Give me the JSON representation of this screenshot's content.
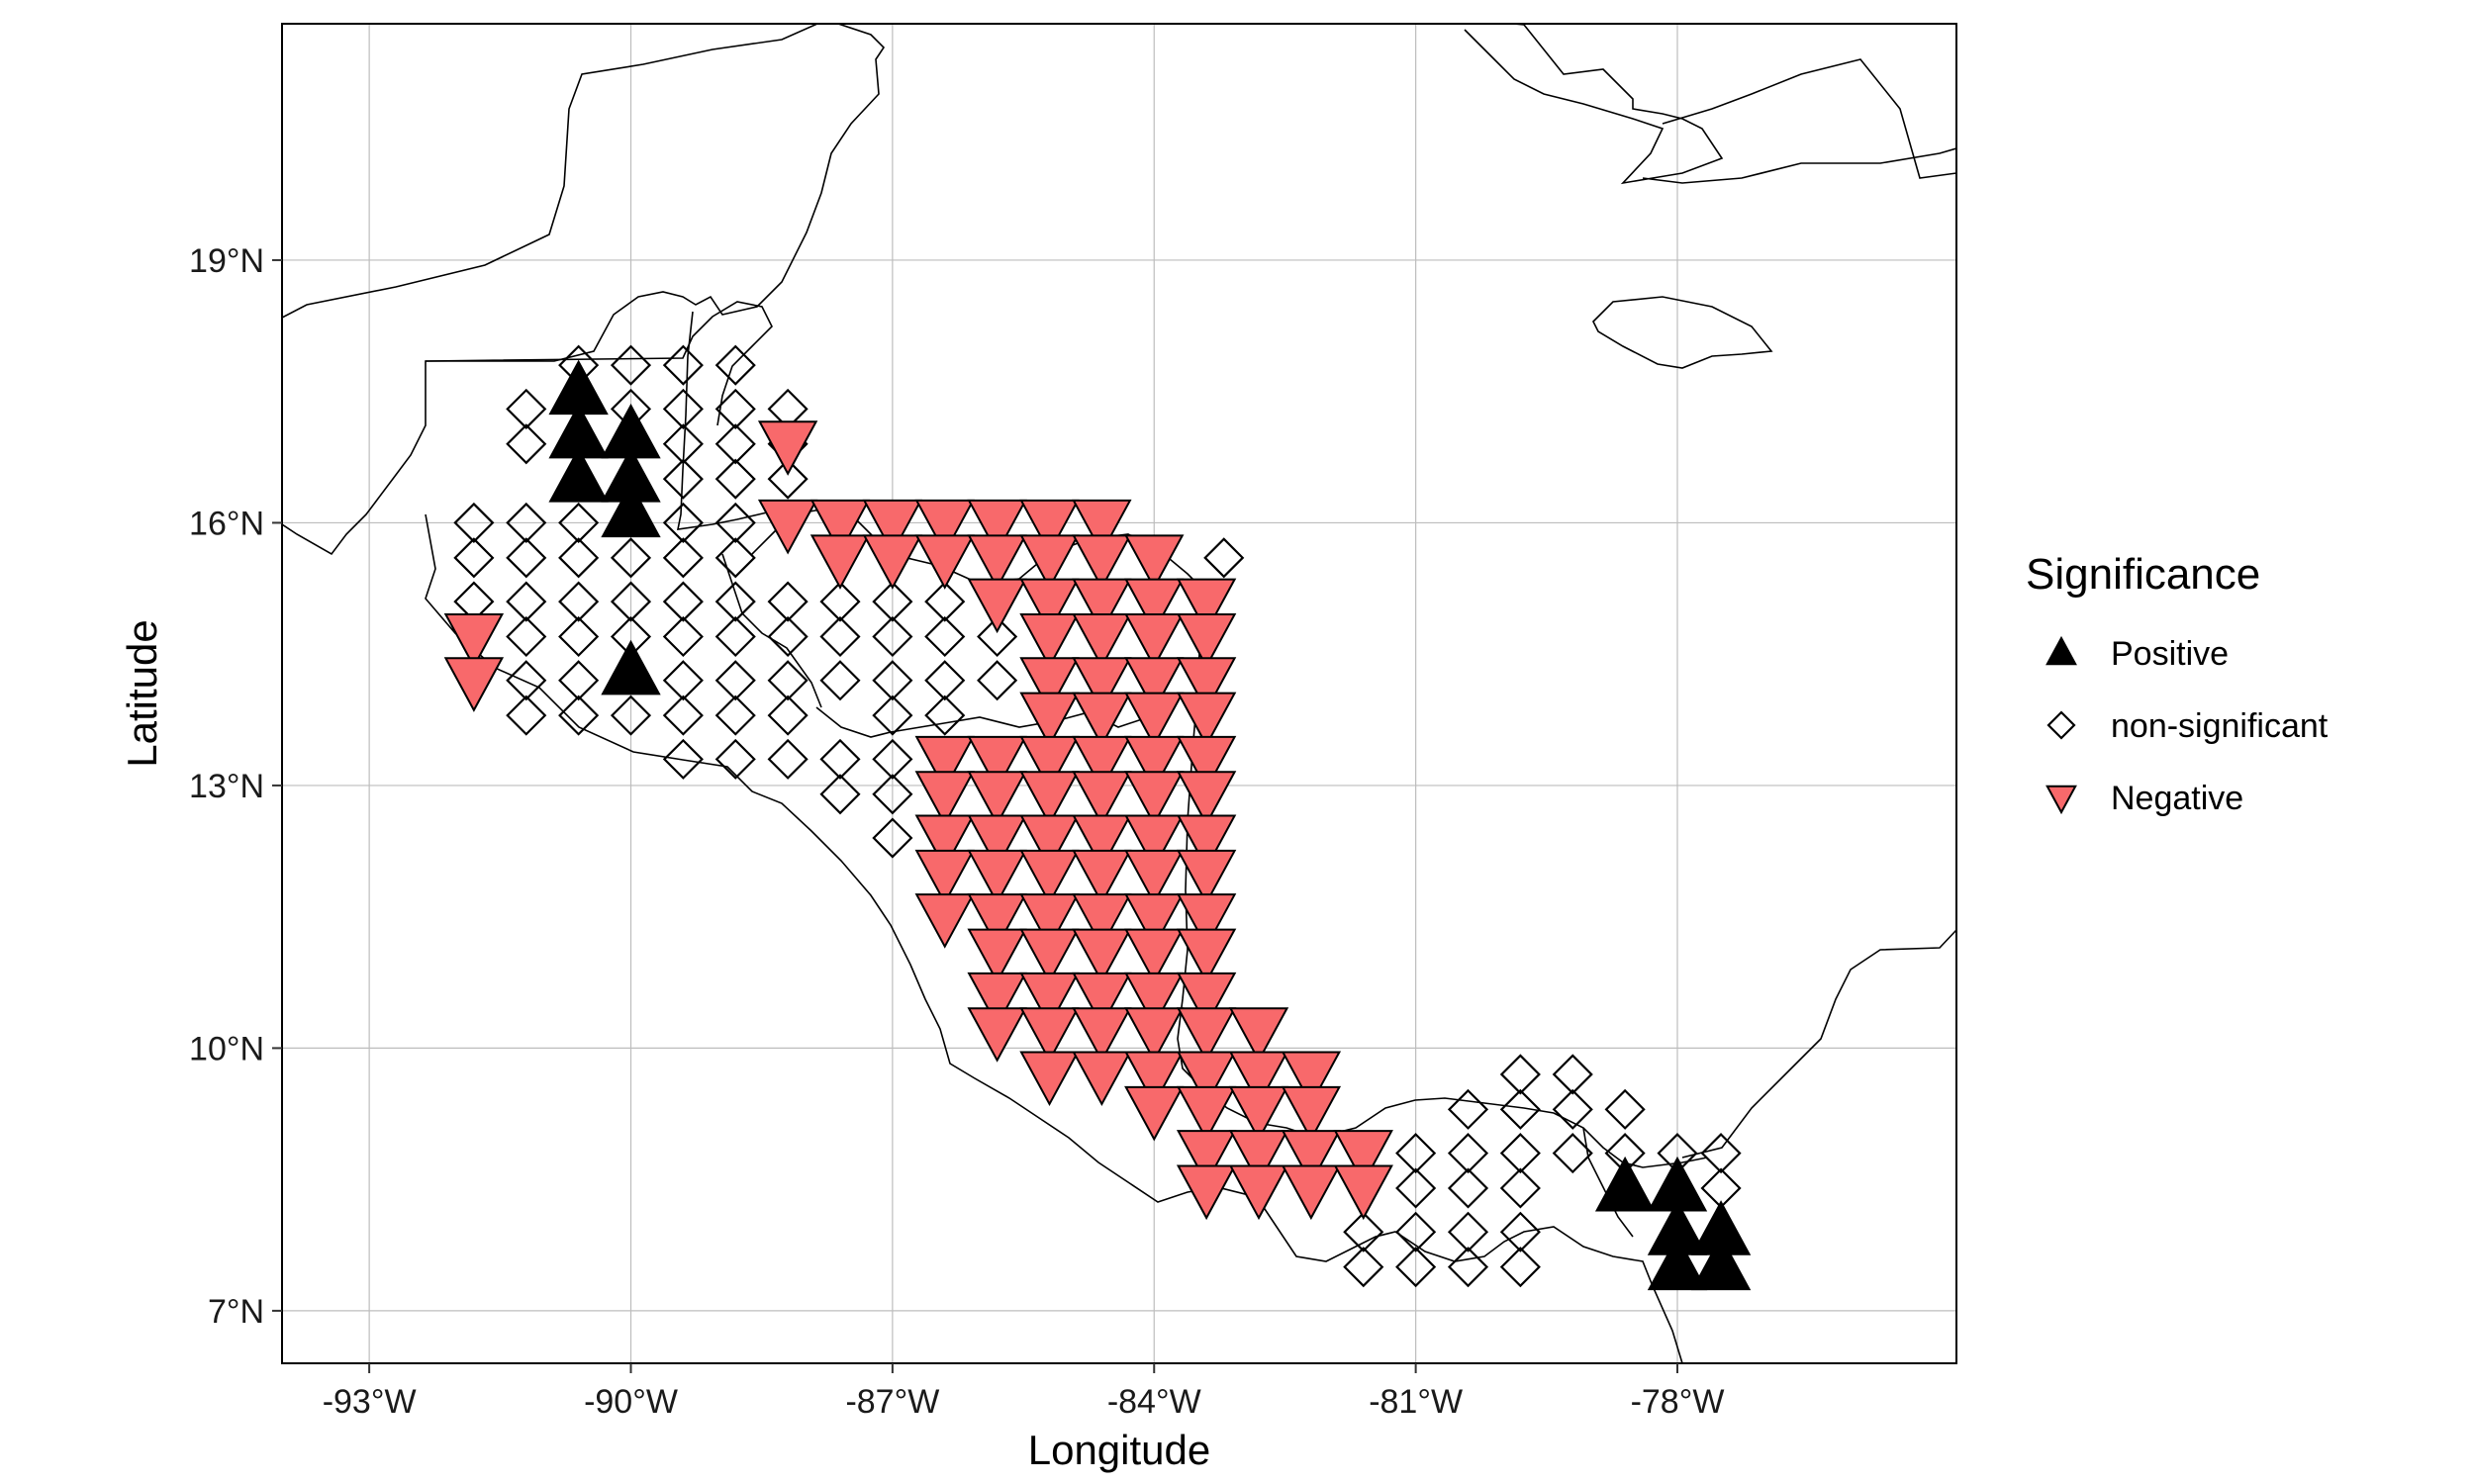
{
  "chart_data": {
    "type": "scatter",
    "title": "",
    "xlabel": "Longitude",
    "ylabel": "Latitude",
    "xlim": [
      -94,
      -74.8
    ],
    "ylim": [
      6.4,
      21.7
    ],
    "grid": true,
    "x_ticks": [
      -93,
      -90,
      -87,
      -84,
      -81,
      -78
    ],
    "x_tick_labels": [
      "-93°W",
      "-90°W",
      "-87°W",
      "-84°W",
      "-81°W",
      "-78°W"
    ],
    "y_ticks": [
      7,
      10,
      13,
      16,
      19
    ],
    "y_tick_labels": [
      "7°N",
      "10°N",
      "13°N",
      "16°N",
      "19°N"
    ],
    "legend": {
      "title": "Significance",
      "placement": "right",
      "entries": [
        {
          "label": "Positive",
          "shape": "triangle-up",
          "color": "#000000"
        },
        {
          "label": "non-significant",
          "shape": "diamond-open",
          "color": "#000000"
        },
        {
          "label": "Negative",
          "shape": "triangle-down",
          "color": "#F8696B"
        }
      ]
    },
    "series": [
      {
        "name": "Positive",
        "points": [
          [
            -90.6,
            17.5
          ],
          [
            -90.6,
            17.0
          ],
          [
            -90.6,
            16.5
          ],
          [
            -90.0,
            17.0
          ],
          [
            -90.0,
            16.5
          ],
          [
            -90.0,
            16.1
          ],
          [
            -90.0,
            14.3
          ],
          [
            -78.6,
            8.4
          ],
          [
            -78.0,
            8.4
          ],
          [
            -78.0,
            7.9
          ],
          [
            -78.0,
            7.5
          ],
          [
            -77.5,
            7.9
          ],
          [
            -77.5,
            7.5
          ]
        ]
      },
      {
        "name": "non-significant",
        "points": [
          [
            -90.6,
            17.8
          ],
          [
            -90.0,
            17.8
          ],
          [
            -89.4,
            17.8
          ],
          [
            -88.8,
            17.8
          ],
          [
            -91.2,
            17.3
          ],
          [
            -90.0,
            17.3
          ],
          [
            -89.4,
            17.3
          ],
          [
            -88.8,
            17.3
          ],
          [
            -88.2,
            17.3
          ],
          [
            -91.2,
            16.9
          ],
          [
            -89.4,
            16.9
          ],
          [
            -88.8,
            16.9
          ],
          [
            -88.2,
            16.9
          ],
          [
            -89.4,
            16.5
          ],
          [
            -88.8,
            16.5
          ],
          [
            -88.2,
            16.5
          ],
          [
            -91.8,
            16.0
          ],
          [
            -91.2,
            16.0
          ],
          [
            -90.6,
            16.0
          ],
          [
            -89.4,
            16.0
          ],
          [
            -88.8,
            16.0
          ],
          [
            -91.8,
            15.6
          ],
          [
            -91.2,
            15.6
          ],
          [
            -90.6,
            15.6
          ],
          [
            -90.0,
            15.6
          ],
          [
            -89.4,
            15.6
          ],
          [
            -88.8,
            15.6
          ],
          [
            -83.2,
            15.6
          ],
          [
            -91.8,
            15.1
          ],
          [
            -91.2,
            15.1
          ],
          [
            -90.6,
            15.1
          ],
          [
            -90.0,
            15.1
          ],
          [
            -89.4,
            15.1
          ],
          [
            -88.8,
            15.1
          ],
          [
            -88.2,
            15.1
          ],
          [
            -87.6,
            15.1
          ],
          [
            -87.0,
            15.1
          ],
          [
            -86.4,
            15.1
          ],
          [
            -91.2,
            14.7
          ],
          [
            -90.6,
            14.7
          ],
          [
            -90.0,
            14.7
          ],
          [
            -89.4,
            14.7
          ],
          [
            -88.8,
            14.7
          ],
          [
            -88.2,
            14.7
          ],
          [
            -87.6,
            14.7
          ],
          [
            -87.0,
            14.7
          ],
          [
            -86.4,
            14.7
          ],
          [
            -85.8,
            14.7
          ],
          [
            -91.2,
            14.2
          ],
          [
            -90.6,
            14.2
          ],
          [
            -89.4,
            14.2
          ],
          [
            -88.8,
            14.2
          ],
          [
            -88.2,
            14.2
          ],
          [
            -87.6,
            14.2
          ],
          [
            -87.0,
            14.2
          ],
          [
            -86.4,
            14.2
          ],
          [
            -85.8,
            14.2
          ],
          [
            -91.2,
            13.8
          ],
          [
            -90.6,
            13.8
          ],
          [
            -90.0,
            13.8
          ],
          [
            -89.4,
            13.8
          ],
          [
            -88.8,
            13.8
          ],
          [
            -88.2,
            13.8
          ],
          [
            -87.0,
            13.8
          ],
          [
            -86.4,
            13.8
          ],
          [
            -89.4,
            13.3
          ],
          [
            -88.8,
            13.3
          ],
          [
            -88.2,
            13.3
          ],
          [
            -87.6,
            13.3
          ],
          [
            -87.0,
            13.3
          ],
          [
            -87.6,
            12.9
          ],
          [
            -87.0,
            12.9
          ],
          [
            -87.0,
            12.4
          ],
          [
            -79.8,
            9.7
          ],
          [
            -79.2,
            9.7
          ],
          [
            -80.4,
            9.3
          ],
          [
            -79.8,
            9.3
          ],
          [
            -79.2,
            9.3
          ],
          [
            -78.6,
            9.3
          ],
          [
            -81.0,
            8.8
          ],
          [
            -80.4,
            8.8
          ],
          [
            -79.8,
            8.8
          ],
          [
            -79.2,
            8.8
          ],
          [
            -78.6,
            8.8
          ],
          [
            -78.0,
            8.8
          ],
          [
            -77.5,
            8.8
          ],
          [
            -81.0,
            8.4
          ],
          [
            -80.4,
            8.4
          ],
          [
            -79.8,
            8.4
          ],
          [
            -77.5,
            8.4
          ],
          [
            -81.6,
            7.9
          ],
          [
            -81.0,
            7.9
          ],
          [
            -80.4,
            7.9
          ],
          [
            -79.8,
            7.9
          ],
          [
            -81.6,
            7.5
          ],
          [
            -81.0,
            7.5
          ],
          [
            -80.4,
            7.5
          ],
          [
            -79.8,
            7.5
          ]
        ]
      },
      {
        "name": "Negative",
        "points": [
          [
            -91.8,
            14.7
          ],
          [
            -91.8,
            14.2
          ],
          [
            -88.2,
            16.9
          ],
          [
            -88.2,
            16.0
          ],
          [
            -87.6,
            16.0
          ],
          [
            -87.0,
            16.0
          ],
          [
            -86.4,
            16.0
          ],
          [
            -85.8,
            16.0
          ],
          [
            -85.2,
            16.0
          ],
          [
            -84.6,
            16.0
          ],
          [
            -87.6,
            15.6
          ],
          [
            -87.0,
            15.6
          ],
          [
            -86.4,
            15.6
          ],
          [
            -85.8,
            15.6
          ],
          [
            -85.2,
            15.6
          ],
          [
            -84.6,
            15.6
          ],
          [
            -84.0,
            15.6
          ],
          [
            -85.8,
            15.1
          ],
          [
            -85.2,
            15.1
          ],
          [
            -84.6,
            15.1
          ],
          [
            -84.0,
            15.1
          ],
          [
            -83.4,
            15.1
          ],
          [
            -85.2,
            14.7
          ],
          [
            -84.6,
            14.7
          ],
          [
            -84.0,
            14.7
          ],
          [
            -83.4,
            14.7
          ],
          [
            -85.2,
            14.2
          ],
          [
            -84.6,
            14.2
          ],
          [
            -84.0,
            14.2
          ],
          [
            -83.4,
            14.2
          ],
          [
            -85.2,
            13.8
          ],
          [
            -84.6,
            13.8
          ],
          [
            -84.0,
            13.8
          ],
          [
            -83.4,
            13.8
          ],
          [
            -86.4,
            13.3
          ],
          [
            -85.8,
            13.3
          ],
          [
            -85.2,
            13.3
          ],
          [
            -84.6,
            13.3
          ],
          [
            -84.0,
            13.3
          ],
          [
            -83.4,
            13.3
          ],
          [
            -86.4,
            12.9
          ],
          [
            -85.8,
            12.9
          ],
          [
            -85.2,
            12.9
          ],
          [
            -84.6,
            12.9
          ],
          [
            -84.0,
            12.9
          ],
          [
            -83.4,
            12.9
          ],
          [
            -86.4,
            12.4
          ],
          [
            -85.8,
            12.4
          ],
          [
            -85.2,
            12.4
          ],
          [
            -84.6,
            12.4
          ],
          [
            -84.0,
            12.4
          ],
          [
            -83.4,
            12.4
          ],
          [
            -86.4,
            12.0
          ],
          [
            -85.8,
            12.0
          ],
          [
            -85.2,
            12.0
          ],
          [
            -84.6,
            12.0
          ],
          [
            -84.0,
            12.0
          ],
          [
            -83.4,
            12.0
          ],
          [
            -86.4,
            11.5
          ],
          [
            -85.8,
            11.5
          ],
          [
            -85.2,
            11.5
          ],
          [
            -84.6,
            11.5
          ],
          [
            -84.0,
            11.5
          ],
          [
            -83.4,
            11.5
          ],
          [
            -85.8,
            11.1
          ],
          [
            -85.2,
            11.1
          ],
          [
            -84.6,
            11.1
          ],
          [
            -84.0,
            11.1
          ],
          [
            -83.4,
            11.1
          ],
          [
            -85.8,
            10.6
          ],
          [
            -85.2,
            10.6
          ],
          [
            -84.6,
            10.6
          ],
          [
            -84.0,
            10.6
          ],
          [
            -83.4,
            10.6
          ],
          [
            -85.8,
            10.2
          ],
          [
            -85.2,
            10.2
          ],
          [
            -84.6,
            10.2
          ],
          [
            -84.0,
            10.2
          ],
          [
            -83.4,
            10.2
          ],
          [
            -82.8,
            10.2
          ],
          [
            -85.2,
            9.7
          ],
          [
            -84.6,
            9.7
          ],
          [
            -84.0,
            9.7
          ],
          [
            -83.4,
            9.7
          ],
          [
            -82.8,
            9.7
          ],
          [
            -82.2,
            9.7
          ],
          [
            -84.0,
            9.3
          ],
          [
            -83.4,
            9.3
          ],
          [
            -82.8,
            9.3
          ],
          [
            -82.2,
            9.3
          ],
          [
            -83.4,
            8.8
          ],
          [
            -82.8,
            8.8
          ],
          [
            -82.2,
            8.8
          ],
          [
            -81.6,
            8.8
          ],
          [
            -83.4,
            8.4
          ],
          [
            -82.8,
            8.4
          ],
          [
            -82.2,
            8.4
          ],
          [
            -81.6,
            8.4
          ]
        ]
      }
    ]
  }
}
